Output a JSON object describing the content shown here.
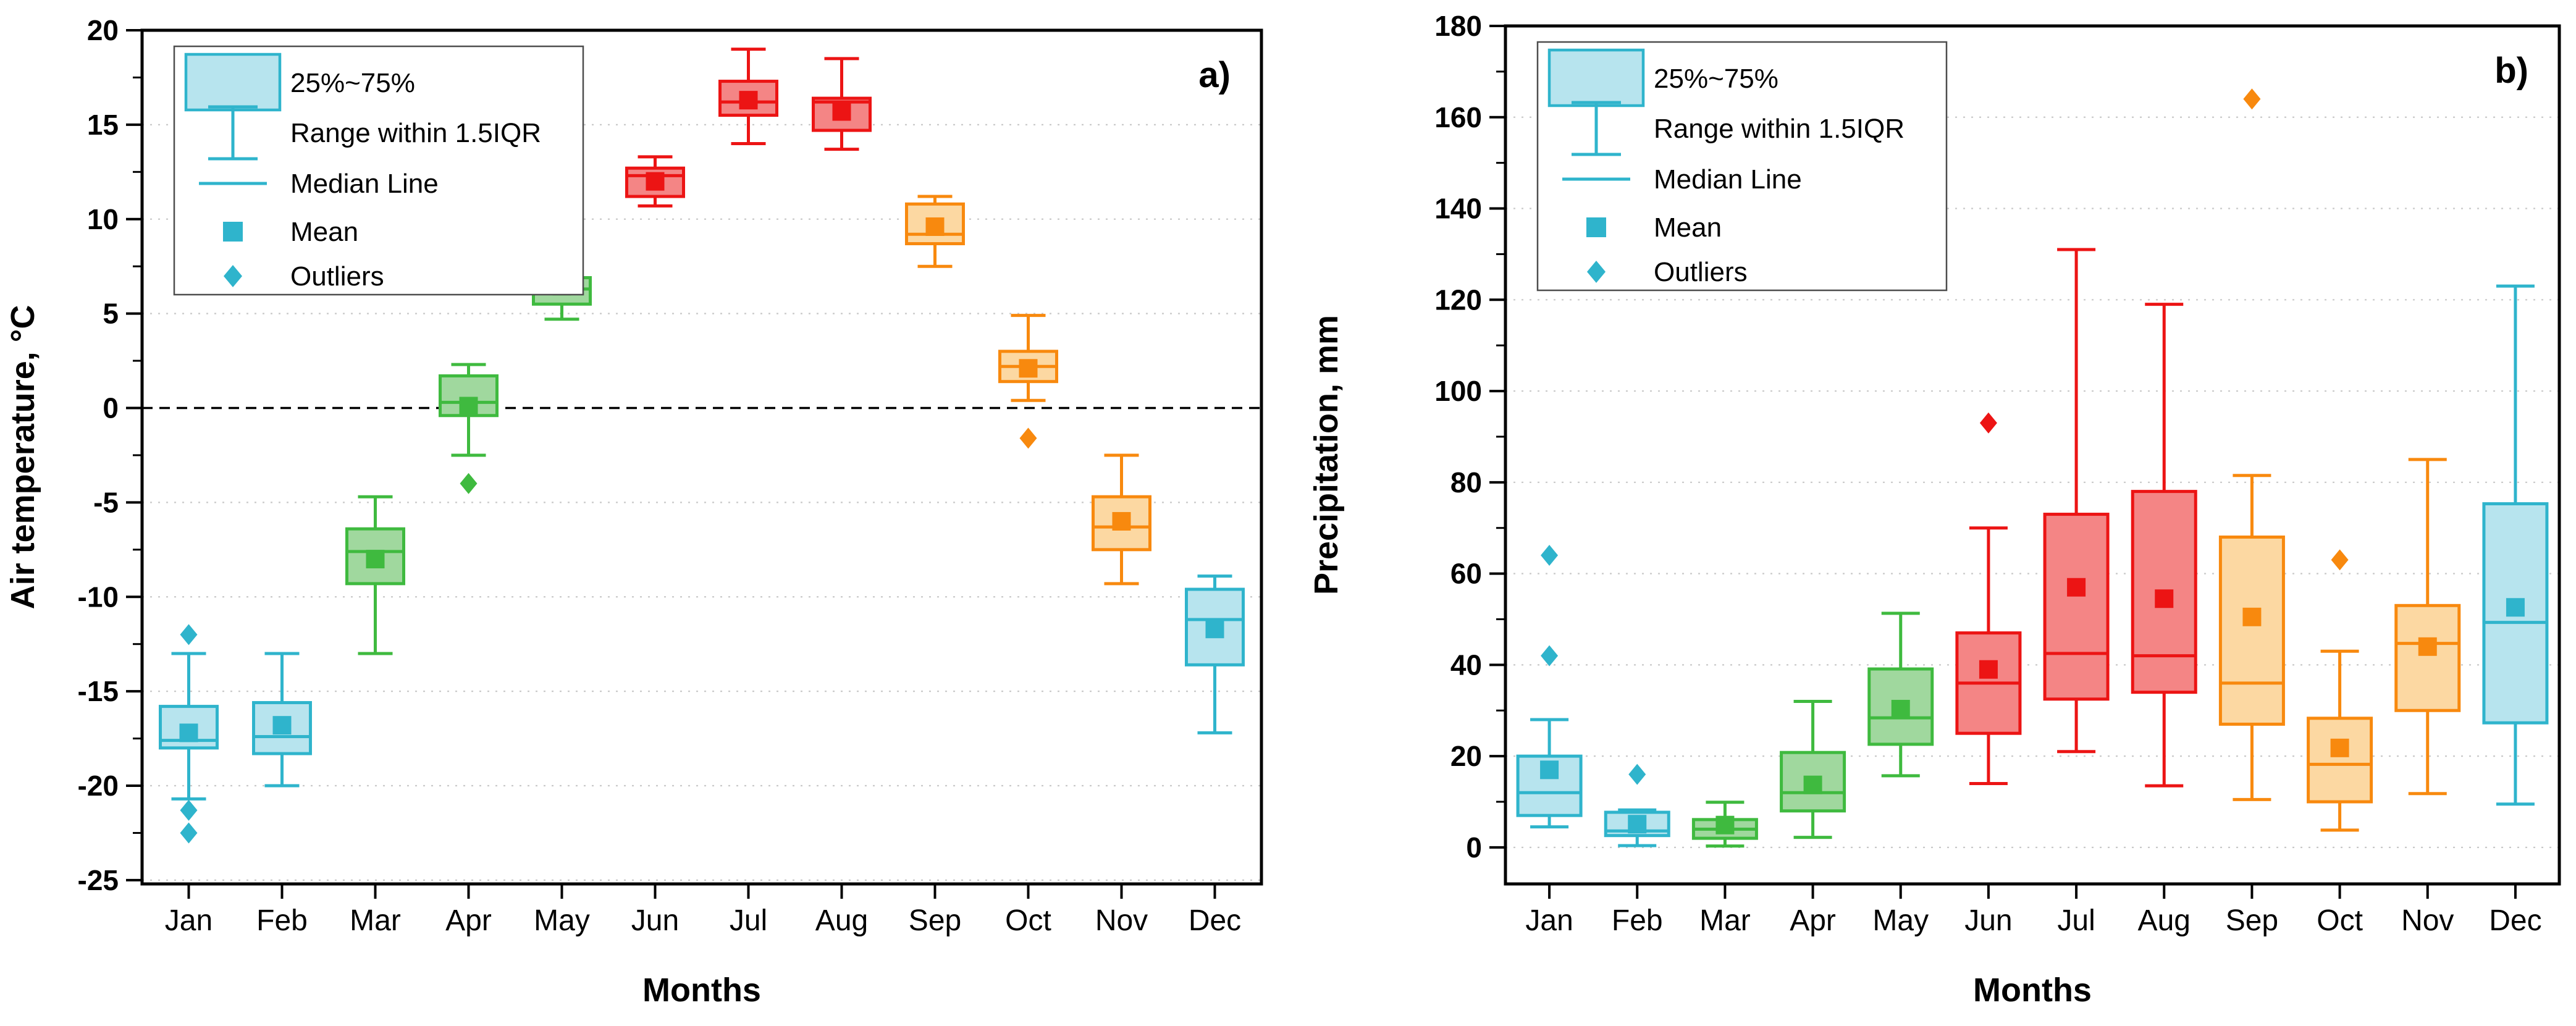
{
  "page": {
    "background": "#ffffff"
  },
  "colors": {
    "winter": {
      "stroke": "#2FB4CC",
      "fill": "#B7E4EE"
    },
    "spring": {
      "stroke": "#3FBA3F",
      "fill": "#A0D89E"
    },
    "summer": {
      "stroke": "#EC1414",
      "fill": "#F48585"
    },
    "autumn": {
      "stroke": "#F8890E",
      "fill": "#FCD8A2"
    },
    "grid": "#c9c9c9",
    "frame": "#000000",
    "legend_border": "#4d4d4d"
  },
  "legend": {
    "items": [
      "25%~75%",
      "Range within 1.5IQR",
      "Median Line",
      "Mean",
      "Outliers"
    ]
  },
  "chart_data": [
    {
      "id": "air-temperature",
      "type": "box",
      "panel_label": "a)",
      "xlabel": "Months",
      "ylabel": "Air temperature, °C",
      "ylim": [
        -25.2,
        20
      ],
      "yticks": [
        20,
        15,
        10,
        5,
        0,
        -5,
        -10,
        -15,
        -20,
        -25
      ],
      "minor_step": 2.5,
      "zero_line": true,
      "grid": "dotted",
      "legend_position": "top-left",
      "categories": [
        "Jan",
        "Feb",
        "Mar",
        "Apr",
        "May",
        "Jun",
        "Jul",
        "Aug",
        "Sep",
        "Oct",
        "Nov",
        "Dec"
      ],
      "seasons": [
        "winter",
        "winter",
        "spring",
        "spring",
        "spring",
        "summer",
        "summer",
        "summer",
        "autumn",
        "autumn",
        "autumn",
        "winter"
      ],
      "series": [
        {
          "month": "Jan",
          "whisker_low": -20.7,
          "q1": -18.0,
          "median": -17.6,
          "mean": -17.2,
          "q3": -15.8,
          "whisker_high": -13.0,
          "outliers": [
            -12.0,
            -21.3,
            -22.5
          ]
        },
        {
          "month": "Feb",
          "whisker_low": -20.0,
          "q1": -18.3,
          "median": -17.4,
          "mean": -16.8,
          "q3": -15.6,
          "whisker_high": -13.0,
          "outliers": []
        },
        {
          "month": "Mar",
          "whisker_low": -13.0,
          "q1": -9.3,
          "median": -7.6,
          "mean": -8.0,
          "q3": -6.4,
          "whisker_high": -4.7,
          "outliers": []
        },
        {
          "month": "Apr",
          "whisker_low": -2.5,
          "q1": -0.4,
          "median": 0.3,
          "mean": 0.1,
          "q3": 1.7,
          "whisker_high": 2.3,
          "outliers": [
            -4.0
          ]
        },
        {
          "month": "May",
          "whisker_low": 4.7,
          "q1": 5.5,
          "median": 6.3,
          "mean": 6.45,
          "q3": 6.9,
          "whisker_high": 7.4,
          "outliers": []
        },
        {
          "month": "Jun",
          "whisker_low": 10.7,
          "q1": 11.2,
          "median": 12.3,
          "mean": 12.0,
          "q3": 12.7,
          "whisker_high": 13.3,
          "outliers": []
        },
        {
          "month": "Jul",
          "whisker_low": 14.0,
          "q1": 15.5,
          "median": 16.2,
          "mean": 16.3,
          "q3": 17.3,
          "whisker_high": 19.0,
          "outliers": []
        },
        {
          "month": "Aug",
          "whisker_low": 13.7,
          "q1": 14.7,
          "median": 16.2,
          "mean": 15.7,
          "q3": 16.4,
          "whisker_high": 18.5,
          "outliers": []
        },
        {
          "month": "Sep",
          "whisker_low": 7.5,
          "q1": 8.7,
          "median": 9.2,
          "mean": 9.6,
          "q3": 10.8,
          "whisker_high": 11.2,
          "outliers": []
        },
        {
          "month": "Oct",
          "whisker_low": 0.4,
          "q1": 1.4,
          "median": 2.2,
          "mean": 2.1,
          "q3": 3.0,
          "whisker_high": 4.9,
          "outliers": [
            -1.6
          ]
        },
        {
          "month": "Nov",
          "whisker_low": -9.3,
          "q1": -7.5,
          "median": -6.3,
          "mean": -6.0,
          "q3": -4.7,
          "whisker_high": -2.5,
          "outliers": []
        },
        {
          "month": "Dec",
          "whisker_low": -17.2,
          "q1": -13.6,
          "median": -11.2,
          "mean": -11.7,
          "q3": -9.6,
          "whisker_high": -8.9,
          "outliers": []
        }
      ]
    },
    {
      "id": "precipitation",
      "type": "box",
      "panel_label": "b)",
      "xlabel": "Months",
      "ylabel": "Precipitation, mm",
      "ylim": [
        -8,
        180
      ],
      "yticks": [
        180,
        160,
        140,
        120,
        100,
        80,
        60,
        40,
        20,
        0
      ],
      "minor_step": 10,
      "zero_line": false,
      "grid": "dotted",
      "legend_position": "top-left",
      "categories": [
        "Jan",
        "Feb",
        "Mar",
        "Apr",
        "May",
        "Jun",
        "Jul",
        "Aug",
        "Sep",
        "Oct",
        "Nov",
        "Dec"
      ],
      "seasons": [
        "winter",
        "winter",
        "spring",
        "spring",
        "spring",
        "summer",
        "summer",
        "summer",
        "autumn",
        "autumn",
        "autumn",
        "winter"
      ],
      "series": [
        {
          "month": "Jan",
          "whisker_low": 4.5,
          "q1": 7,
          "median": 12,
          "mean": 17,
          "q3": 20,
          "whisker_high": 28,
          "outliers": [
            42,
            64
          ]
        },
        {
          "month": "Feb",
          "whisker_low": 0.4,
          "q1": 2.6,
          "median": 3.6,
          "mean": 5.1,
          "q3": 7.7,
          "whisker_high": 8.2,
          "outliers": [
            16
          ]
        },
        {
          "month": "Mar",
          "whisker_low": 0.3,
          "q1": 2.0,
          "median": 4.0,
          "mean": 4.9,
          "q3": 6.1,
          "whisker_high": 9.9,
          "outliers": []
        },
        {
          "month": "Apr",
          "whisker_low": 2.2,
          "q1": 8.0,
          "median": 12.0,
          "mean": 13.7,
          "q3": 20.8,
          "whisker_high": 32,
          "outliers": []
        },
        {
          "month": "May",
          "whisker_low": 15.7,
          "q1": 22.6,
          "median": 28.4,
          "mean": 30.3,
          "q3": 39.1,
          "whisker_high": 51.3,
          "outliers": []
        },
        {
          "month": "Jun",
          "whisker_low": 14,
          "q1": 25,
          "median": 36,
          "mean": 39,
          "q3": 47,
          "whisker_high": 70,
          "outliers": [
            93
          ]
        },
        {
          "month": "Jul",
          "whisker_low": 21,
          "q1": 32.5,
          "median": 42.5,
          "mean": 57,
          "q3": 73,
          "whisker_high": 131,
          "outliers": []
        },
        {
          "month": "Aug",
          "whisker_low": 13.5,
          "q1": 34,
          "median": 42,
          "mean": 54.5,
          "q3": 78,
          "whisker_high": 119,
          "outliers": []
        },
        {
          "month": "Sep",
          "whisker_low": 10.5,
          "q1": 27,
          "median": 36,
          "mean": 50.5,
          "q3": 68,
          "whisker_high": 81.5,
          "outliers": [
            164
          ]
        },
        {
          "month": "Oct",
          "whisker_low": 3.8,
          "q1": 10,
          "median": 18.2,
          "mean": 21.8,
          "q3": 28.3,
          "whisker_high": 43,
          "outliers": [
            63
          ]
        },
        {
          "month": "Nov",
          "whisker_low": 11.8,
          "q1": 30,
          "median": 44.7,
          "mean": 44,
          "q3": 53,
          "whisker_high": 85,
          "outliers": []
        },
        {
          "month": "Dec",
          "whisker_low": 9.5,
          "q1": 27.3,
          "median": 49.3,
          "mean": 52.6,
          "q3": 75.3,
          "whisker_high": 123,
          "outliers": []
        }
      ]
    }
  ]
}
